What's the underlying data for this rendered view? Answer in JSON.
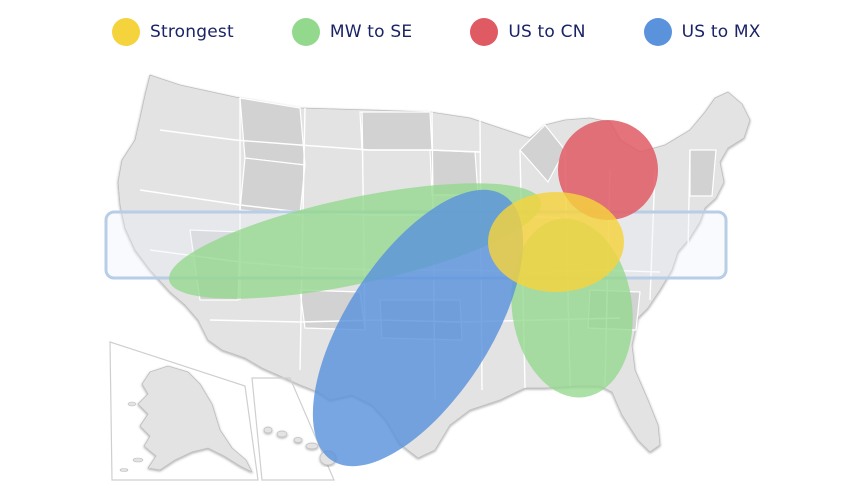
{
  "legend": [
    {
      "label": "Strongest",
      "color": "#f5d33d"
    },
    {
      "label": "MW to SE",
      "color": "#93d98d"
    },
    {
      "label": "US to CN",
      "color": "#e05a64"
    },
    {
      "label": "US to MX",
      "color": "#5a92dc"
    }
  ],
  "map": {
    "land_color": "#e3e3e3",
    "land_dark_color": "#cfcfcf",
    "border_color": "#ffffff",
    "band_color": "#b8cde6"
  }
}
